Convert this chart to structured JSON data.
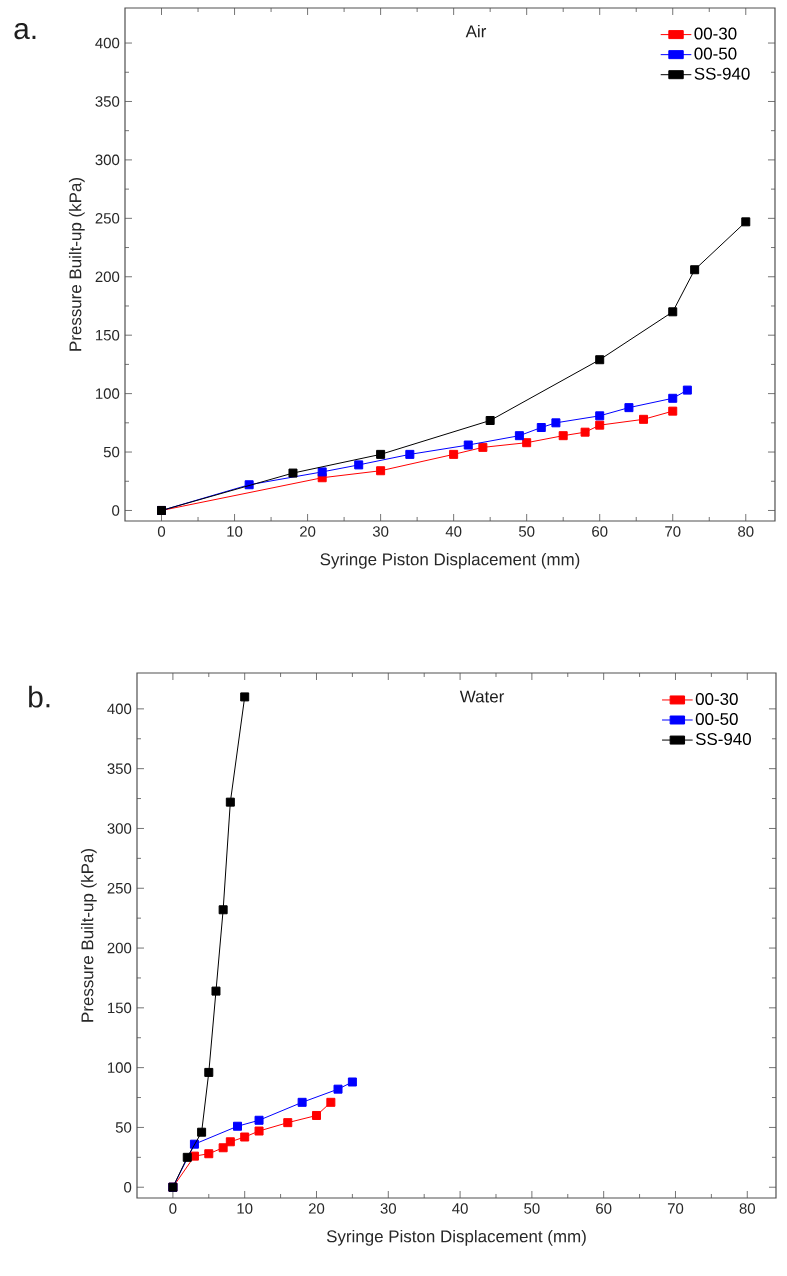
{
  "chart_data": [
    {
      "type": "line",
      "xlabel": "Syringe Piston Displacement (mm)",
      "ylabel": "Pressure Built-up (kPa)",
      "annotations": [
        "a.",
        "Air"
      ],
      "xlim": [
        -5,
        84
      ],
      "ylim": [
        -9,
        430
      ],
      "xticks": [
        0,
        10,
        20,
        30,
        40,
        50,
        60,
        70,
        80
      ],
      "yticks": [
        0,
        50,
        100,
        150,
        200,
        250,
        300,
        350,
        400
      ],
      "legend": "top right",
      "marker": "square",
      "line_style": "solid",
      "grid": false,
      "series": [
        {
          "name": "00-30",
          "color": "#ff0000",
          "x": [
            0,
            22,
            30,
            40,
            44,
            50,
            55,
            58,
            60,
            66,
            70
          ],
          "values": [
            0,
            28,
            34,
            48,
            54,
            58,
            64,
            67,
            73,
            78,
            85
          ]
        },
        {
          "name": "00-50",
          "color": "#0000ff",
          "x": [
            0,
            12,
            22,
            27,
            34,
            42,
            49,
            52,
            54,
            60,
            64,
            70,
            72
          ],
          "values": [
            0,
            22,
            33,
            39,
            48,
            56,
            64,
            71,
            75,
            81,
            88,
            96,
            103
          ]
        },
        {
          "name": "SS-940",
          "color": "#000000",
          "x": [
            0,
            18,
            30,
            45,
            60,
            70,
            73,
            80
          ],
          "values": [
            0,
            32,
            48,
            77,
            129,
            170,
            206,
            247
          ]
        }
      ]
    },
    {
      "type": "line",
      "xlabel": "Syringe Piston Displacement (mm)",
      "ylabel": "Pressure Built-up (kPa)",
      "annotations": [
        "b.",
        "Water"
      ],
      "xlim": [
        -5,
        84
      ],
      "ylim": [
        -9,
        430
      ],
      "xticks": [
        0,
        10,
        20,
        30,
        40,
        50,
        60,
        70,
        80
      ],
      "yticks": [
        0,
        50,
        100,
        150,
        200,
        250,
        300,
        350,
        400
      ],
      "legend": "top right",
      "marker": "square",
      "line_style": "solid",
      "grid": false,
      "series": [
        {
          "name": "00-30",
          "color": "#ff0000",
          "x": [
            0,
            3,
            5,
            7,
            8,
            10,
            12,
            16,
            20,
            22
          ],
          "values": [
            0,
            26,
            28,
            33,
            38,
            42,
            47,
            54,
            60,
            71
          ]
        },
        {
          "name": "00-50",
          "color": "#0000ff",
          "x": [
            0,
            3,
            9,
            12,
            18,
            23,
            25
          ],
          "values": [
            0,
            36,
            51,
            56,
            71,
            82,
            88
          ]
        },
        {
          "name": "SS-940",
          "color": "#000000",
          "x": [
            0,
            2,
            4,
            5,
            6,
            7,
            8,
            10
          ],
          "values": [
            0,
            25,
            46,
            96,
            164,
            232,
            322,
            410
          ]
        }
      ]
    }
  ]
}
